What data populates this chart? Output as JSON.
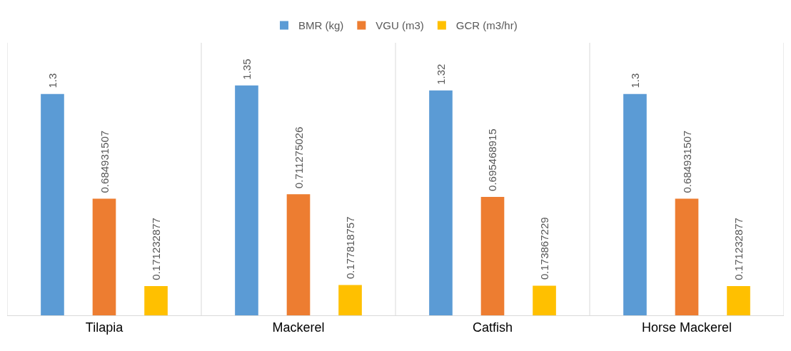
{
  "chart_data": {
    "type": "bar",
    "categories": [
      "Tilapia",
      "Mackerel",
      "Catfish",
      "Horse Mackerel"
    ],
    "series": [
      {
        "name": "BMR (kg)",
        "color": "#5b9bd5",
        "values": [
          1.3,
          1.35,
          1.32,
          1.3
        ]
      },
      {
        "name": "VGU (m3)",
        "color": "#ed7d31",
        "values": [
          0.684931507,
          0.711275026,
          0.695468915,
          0.684931507
        ]
      },
      {
        "name": "GCR (m3/hr)",
        "color": "#ffc000",
        "values": [
          0.171232877,
          0.177818757,
          0.173867229,
          0.171232877
        ]
      }
    ],
    "ylim": [
      0,
      1.6
    ],
    "tick_labels": "x",
    "data_labels": true,
    "grid": "x",
    "legend": "top"
  }
}
